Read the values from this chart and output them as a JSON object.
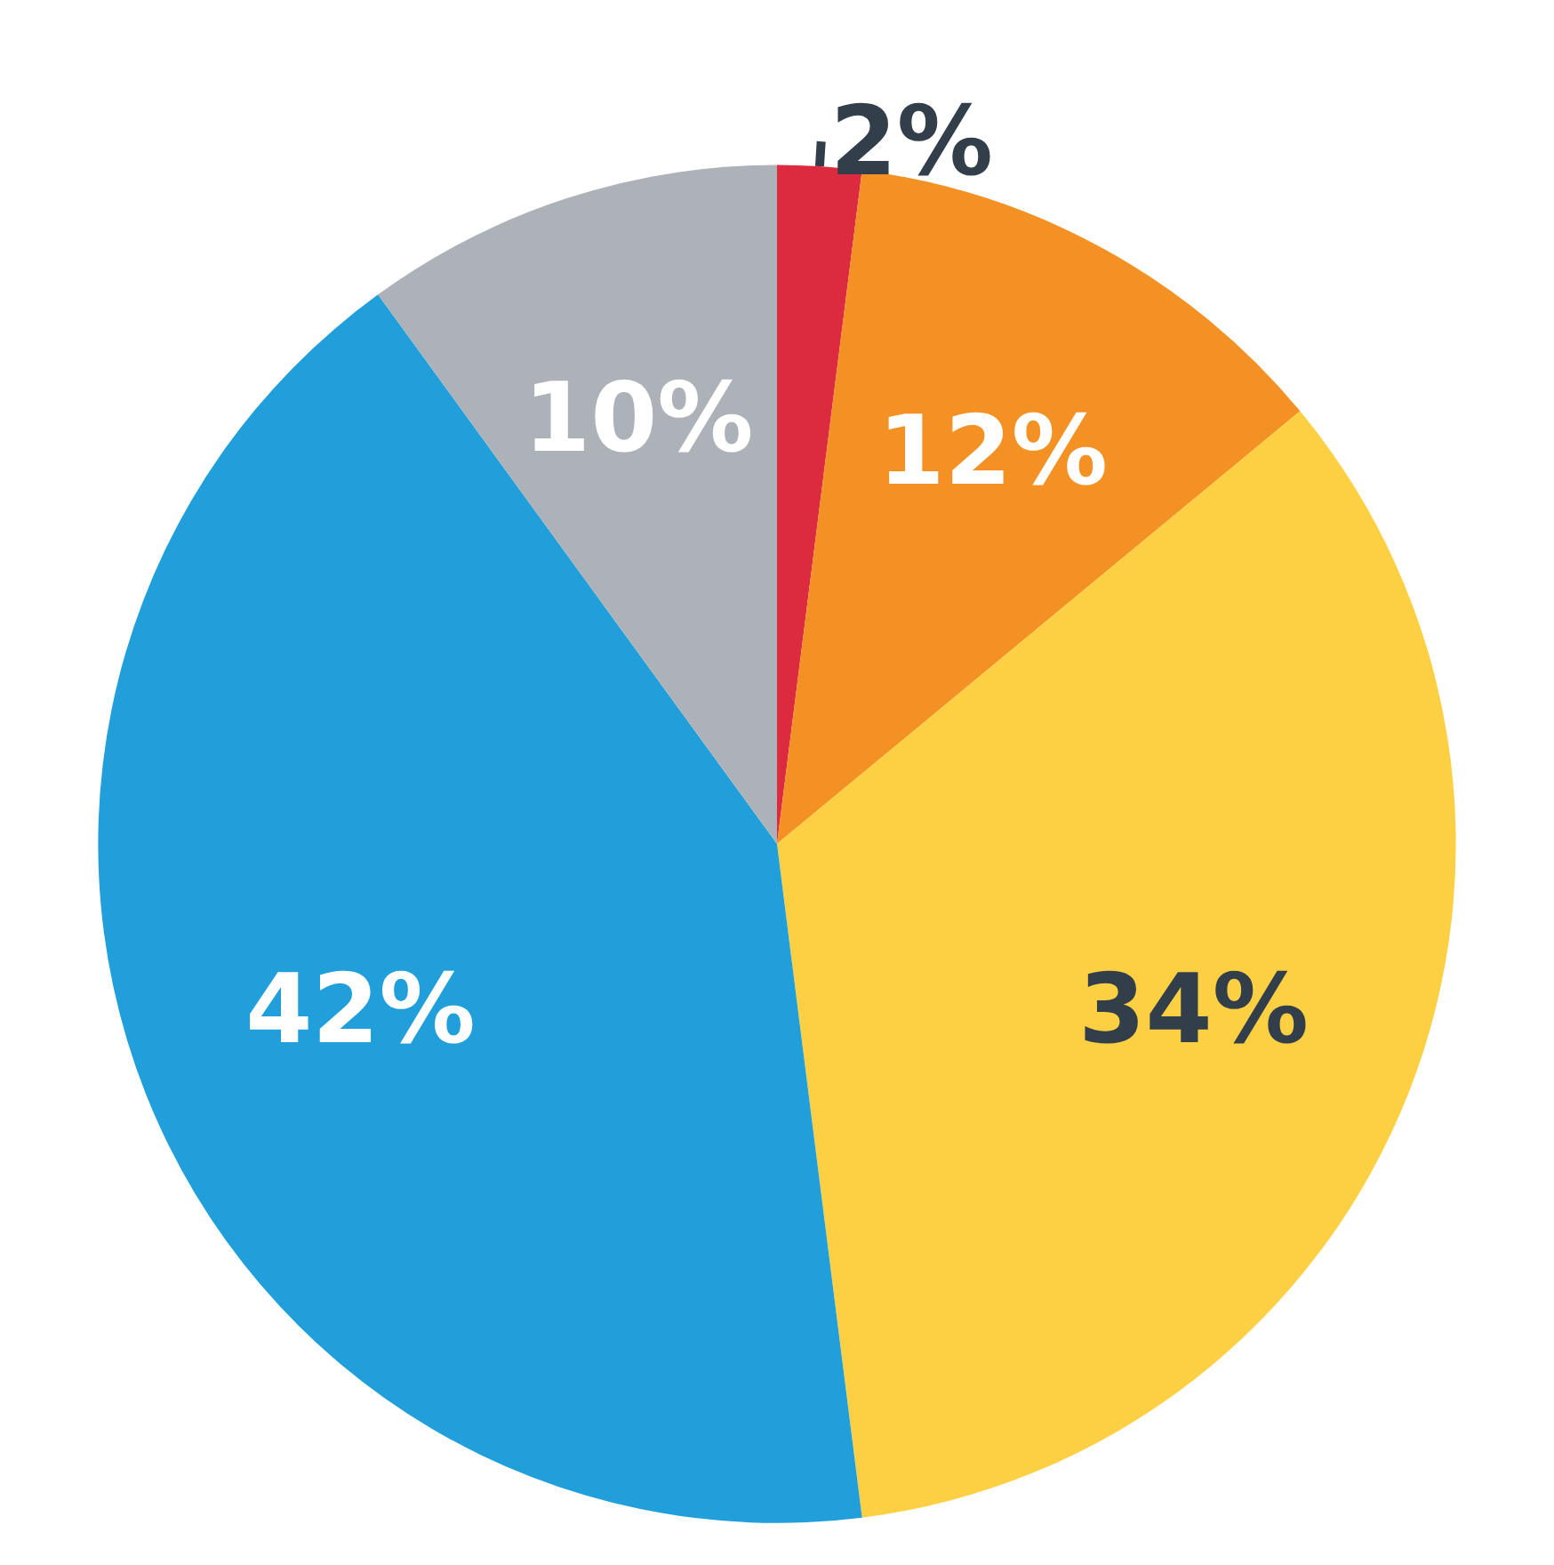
{
  "chart_data": {
    "type": "pie",
    "categories": [
      null,
      null,
      null,
      null,
      null
    ],
    "values": [
      2,
      12,
      34,
      42,
      10
    ],
    "colors": [
      "#dc2a3f",
      "#f39125",
      "#fdd043",
      "#209fda",
      "#adb2b8"
    ],
    "value_labels": [
      "2%",
      "12%",
      "34%",
      "42%",
      "10%"
    ]
  }
}
